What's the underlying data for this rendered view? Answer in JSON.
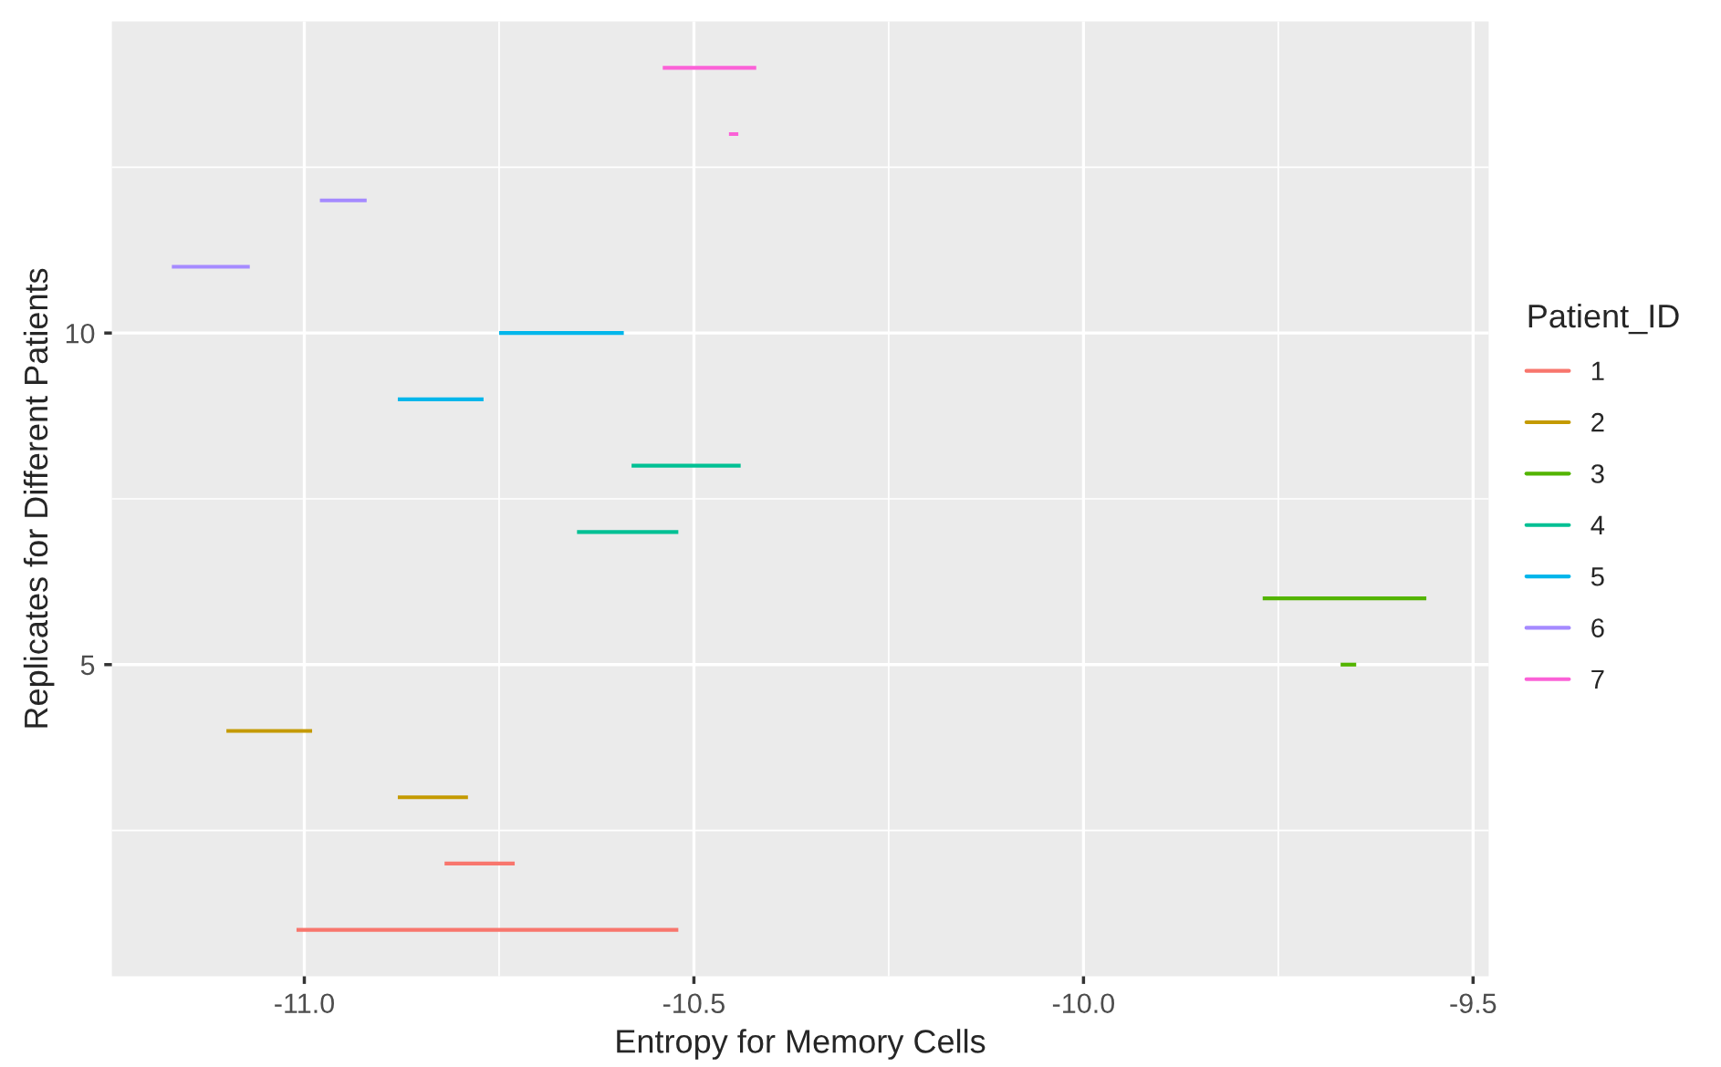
{
  "chart_data": {
    "type": "line",
    "xlabel": "Entropy for Memory Cells",
    "ylabel": "Replicates for Different Patients",
    "legend_title": "Patient_ID",
    "legend": "right",
    "grid": true,
    "line_style": "solid",
    "xlim": [
      -11.247,
      -9.48
    ],
    "xticks": [
      {
        "value": -11,
        "label": "-11.0"
      },
      {
        "value": -10.5,
        "label": "-10.5"
      },
      {
        "value": -10,
        "label": "-10.0"
      },
      {
        "value": -9.5,
        "label": "-9.5"
      }
    ],
    "ylim": [
      0.3,
      14.7
    ],
    "yticks": [
      5,
      10
    ],
    "series": [
      {
        "name": "1",
        "color": "#f8766d",
        "x": [
          -11.01,
          -10.52
        ],
        "values": [
          1,
          1
        ]
      },
      {
        "color": "#f8766d",
        "x": [
          -10.82,
          -10.73
        ],
        "values": [
          2,
          2
        ]
      },
      {
        "name": "2",
        "color": "#c49a00",
        "x": [
          -10.88,
          -10.79
        ],
        "values": [
          3,
          3
        ]
      },
      {
        "color": "#c49a00",
        "x": [
          -11.1,
          -10.99
        ],
        "values": [
          4,
          4
        ]
      },
      {
        "name": "3",
        "color": "#53b400",
        "x": [
          -9.67,
          -9.65
        ],
        "values": [
          5,
          5
        ]
      },
      {
        "color": "#53b400",
        "x": [
          -9.77,
          -9.56
        ],
        "values": [
          6,
          6
        ]
      },
      {
        "name": "4",
        "color": "#00c094",
        "x": [
          -10.65,
          -10.52
        ],
        "values": [
          7,
          7
        ]
      },
      {
        "color": "#00c094",
        "x": [
          -10.58,
          -10.44
        ],
        "values": [
          8,
          8
        ]
      },
      {
        "name": "5",
        "color": "#00b6eb",
        "x": [
          -10.88,
          -10.77
        ],
        "values": [
          9,
          9
        ]
      },
      {
        "color": "#00b6eb",
        "x": [
          -10.75,
          -10.59
        ],
        "values": [
          10,
          10
        ]
      },
      {
        "name": "6",
        "color": "#a58aff",
        "x": [
          -11.17,
          -11.07
        ],
        "values": [
          11,
          11
        ]
      },
      {
        "color": "#a58aff",
        "x": [
          -10.98,
          -10.92
        ],
        "values": [
          12,
          12
        ]
      },
      {
        "name": "7",
        "color": "#fb61d7",
        "x": [
          -10.455,
          -10.443
        ],
        "values": [
          13,
          13
        ]
      },
      {
        "color": "#fb61d7",
        "x": [
          -10.54,
          -10.42
        ],
        "values": [
          14,
          14
        ]
      }
    ]
  }
}
